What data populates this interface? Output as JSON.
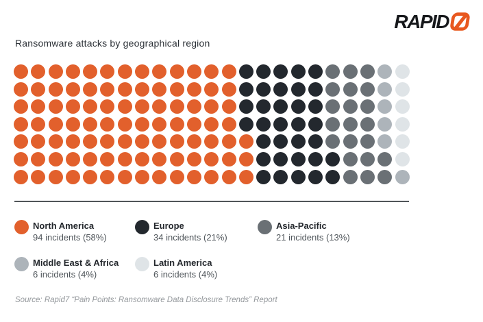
{
  "logo": {
    "text": "RAPID",
    "seven": "7",
    "accent": "#E8581F",
    "dark": "#16181B"
  },
  "title": "Ransomware attacks by geographical region",
  "source": "Source: Rapid7 “Pain Points: Ransomware Data Disclosure Trends” Report",
  "colors": {
    "divider": "#515559",
    "background": "#FFFFFF"
  },
  "chart_data": {
    "type": "waffle",
    "title": "Ransomware attacks by geographical region",
    "rows": 7,
    "cols": 23,
    "total_units": 161,
    "unit": "incidents",
    "fill_order": "column-major-bottom-up",
    "legend_position": "bottom",
    "series": [
      {
        "name": "North America",
        "value": 94,
        "percent": 58,
        "label": "94 incidents (58%)",
        "color": "#E2602C"
      },
      {
        "name": "Europe",
        "value": 34,
        "percent": 21,
        "label": "34 incidents (21%)",
        "color": "#23282E"
      },
      {
        "name": "Asia-Pacific",
        "value": 21,
        "percent": 13,
        "label": "21 incidents (13%)",
        "color": "#6A7075"
      },
      {
        "name": "Middle East & Africa",
        "value": 6,
        "percent": 4,
        "label": "6 incidents (4%)",
        "color": "#ADB4BA"
      },
      {
        "name": "Latin America",
        "value": 6,
        "percent": 4,
        "label": "6 incidents (4%)",
        "color": "#DFE4E7"
      }
    ]
  }
}
